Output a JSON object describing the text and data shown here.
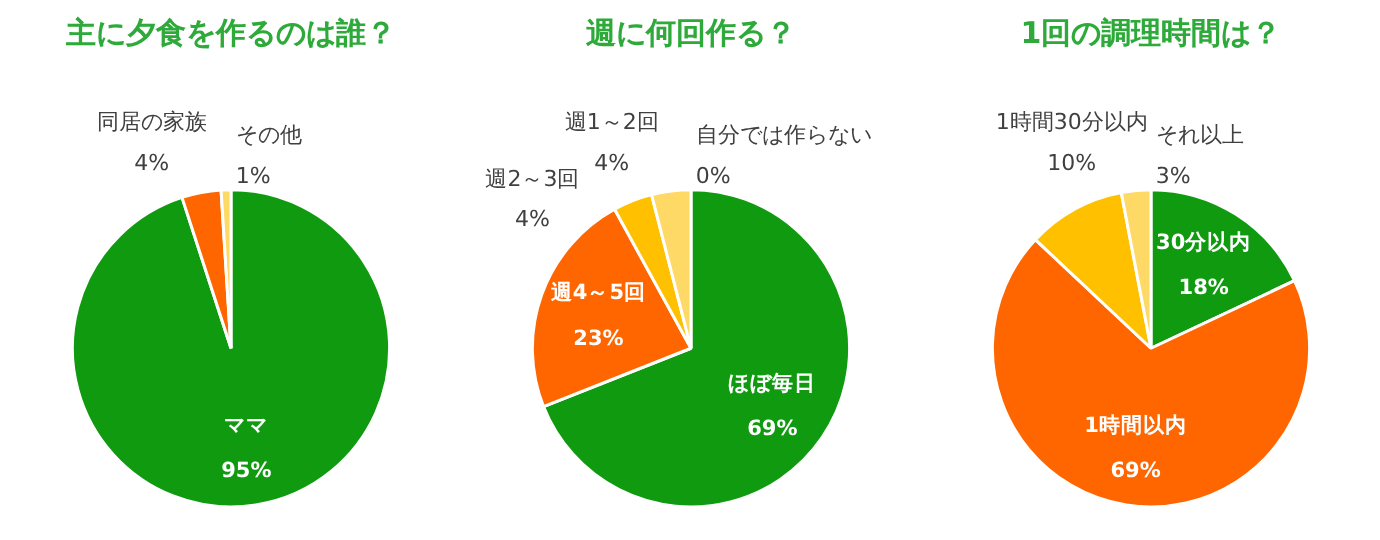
{
  "chart_data": [
    {
      "type": "pie",
      "title": "主に夕食を作るのは誰？",
      "categories": [
        "ママ",
        "同居の家族",
        "その他"
      ],
      "values": [
        95,
        4,
        1
      ],
      "colors": [
        "#109a10",
        "#ff6600",
        "#ffd966"
      ],
      "value_labels": [
        "95%",
        "4%",
        "1%"
      ]
    },
    {
      "type": "pie",
      "title": "週に何回作る？",
      "categories": [
        "ほぼ毎日",
        "週4～5回",
        "週2～3回",
        "週1～2回",
        "自分では作らない"
      ],
      "values": [
        69,
        23,
        4,
        4,
        0
      ],
      "colors": [
        "#109a10",
        "#ff6600",
        "#ffc000",
        "#ffd966",
        "#fff2cc"
      ],
      "value_labels": [
        "69%",
        "23%",
        "4%",
        "4%",
        "0%"
      ]
    },
    {
      "type": "pie",
      "title": "1回の調理時間は？",
      "categories": [
        "30分以内",
        "1時間以内",
        "1時間30分以内",
        "それ以上"
      ],
      "values": [
        18,
        69,
        10,
        3
      ],
      "colors": [
        "#109a10",
        "#ff6600",
        "#ffc000",
        "#ffd966"
      ],
      "value_labels": [
        "18%",
        "69%",
        "10%",
        "3%"
      ]
    }
  ]
}
